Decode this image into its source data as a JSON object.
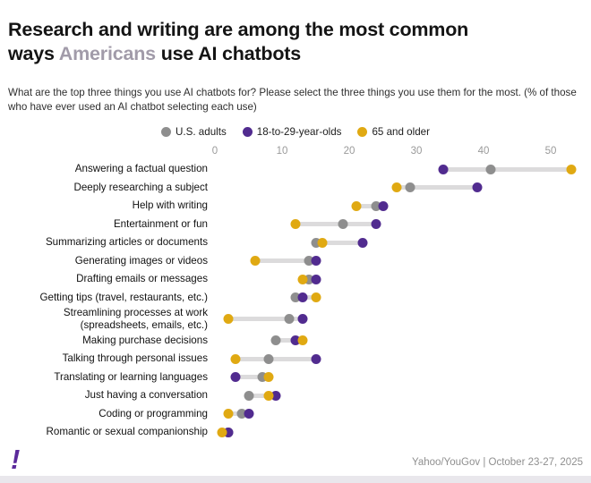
{
  "title": {
    "line1": "Research and writing are among the most common",
    "line2_pre": "ways ",
    "highlight": "Americans",
    "line2_post": " use AI chatbots"
  },
  "subtitle": "What are the top three things you use AI chatbots for? Please select the three things you use them for the most. (% of those who have ever used an AI chatbot selecting each use)",
  "footer": {
    "source": "Yahoo/YouGov | October 23-27, 2025",
    "logo_glyph": "!"
  },
  "chart_data": {
    "type": "scatter",
    "variant": "dumbbell-dot-plot",
    "title": "Top uses of AI chatbots",
    "xlabel": "",
    "ylabel": "",
    "xlim": [
      0,
      55
    ],
    "xticks": [
      0,
      10,
      20,
      30,
      40,
      50
    ],
    "grid": false,
    "legend_position": "top-center",
    "range_line_color": "#dcdbdc",
    "categories": [
      "Answering a factual question",
      "Deeply researching a subject",
      "Help with writing",
      "Entertainment or fun",
      "Summarizing articles or documents",
      "Generating images or videos",
      "Drafting emails or messages",
      "Getting tips (travel, restaurants, etc.)",
      "Streamlining processes at work (spreadsheets, emails, etc.)",
      "Making purchase decisions",
      "Talking through personal issues",
      "Translating or learning languages",
      "Just having a conversation",
      "Coding or programming",
      "Romantic or sexual companionship"
    ],
    "series": [
      {
        "name": "U.S. adults",
        "key": "us-adults",
        "color": "#8e8e8e",
        "values": [
          41,
          29,
          24,
          19,
          15,
          14,
          14,
          12,
          11,
          9,
          8,
          7,
          5,
          4,
          2
        ]
      },
      {
        "name": "18-to-29-year-olds",
        "key": "18-29",
        "color": "#512b8f",
        "values": [
          34,
          39,
          25,
          24,
          22,
          15,
          15,
          13,
          13,
          12,
          15,
          3,
          9,
          5,
          2
        ]
      },
      {
        "name": "65 and older",
        "key": "65-older",
        "color": "#e0a912",
        "values": [
          53,
          27,
          21,
          12,
          16,
          6,
          13,
          15,
          2,
          13,
          3,
          8,
          8,
          2,
          1
        ]
      }
    ]
  }
}
